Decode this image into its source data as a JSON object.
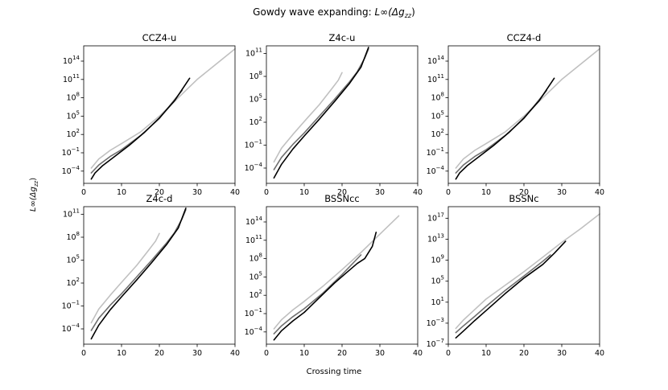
{
  "figure": {
    "title_prefix": "Gowdy wave expanding: ",
    "title_math": "L∞(Δg",
    "title_sub": "zz",
    "title_close": ")",
    "xlabel": "Crossing time",
    "ylabel_main": "L∞(Δg",
    "ylabel_sub": "zz",
    "ylabel_close": ")"
  },
  "colors": {
    "dark": "#000000",
    "mid": "#707070",
    "light": "#c0c0c0"
  },
  "chart_data": [
    {
      "type": "line",
      "title": "CCZ4-u",
      "xlim": [
        0,
        40
      ],
      "ylim_log10": [
        -6,
        16.5
      ],
      "xticks": [
        0,
        10,
        20,
        30,
        40
      ],
      "yticks": [
        {
          "exp": "-4",
          "v": -4
        },
        {
          "exp": "-1",
          "v": -1
        },
        {
          "exp": "2",
          "v": 2
        },
        {
          "exp": "5",
          "v": 5
        },
        {
          "exp": "8",
          "v": 8
        },
        {
          "exp": "11",
          "v": 11
        },
        {
          "exp": "14",
          "v": 14
        }
      ],
      "series": [
        {
          "name": "light",
          "color": "#c0c0c0",
          "x": [
            2,
            4,
            7,
            10,
            15,
            20,
            25,
            30,
            35,
            40
          ],
          "log10y": [
            -3.5,
            -2,
            -0.6,
            0.5,
            2.4,
            5,
            8,
            11,
            13.5,
            16
          ]
        },
        {
          "name": "mid",
          "color": "#707070",
          "x": [
            2,
            4,
            7,
            10,
            15,
            20,
            26
          ],
          "log10y": [
            -4.3,
            -3,
            -1.6,
            -0.5,
            1.8,
            4.6,
            9.2
          ]
        },
        {
          "name": "dark",
          "color": "#000000",
          "x": [
            2,
            3,
            5,
            8,
            12,
            16,
            20,
            24,
            28
          ],
          "log10y": [
            -5.3,
            -4.3,
            -3.1,
            -1.7,
            0.2,
            2.3,
            4.7,
            7.5,
            11.2
          ]
        }
      ]
    },
    {
      "type": "line",
      "title": "Z4c-u",
      "xlim": [
        0,
        40
      ],
      "ylim_log10": [
        -6,
        12
      ],
      "xticks": [
        0,
        10,
        20,
        30,
        40
      ],
      "yticks": [
        {
          "exp": "-4",
          "v": -4
        },
        {
          "exp": "-1",
          "v": -1
        },
        {
          "exp": "2",
          "v": 2
        },
        {
          "exp": "5",
          "v": 5
        },
        {
          "exp": "8",
          "v": 8
        },
        {
          "exp": "11",
          "v": 11
        }
      ],
      "series": [
        {
          "name": "light",
          "color": "#c0c0c0",
          "x": [
            2,
            4,
            7,
            10,
            14,
            17,
            19,
            20
          ],
          "log10y": [
            -3.2,
            -1.4,
            0.4,
            2.1,
            4.3,
            6.2,
            7.5,
            8.5
          ]
        },
        {
          "name": "mid",
          "color": "#707070",
          "x": [
            2,
            4,
            7,
            10,
            14,
            18,
            22,
            24,
            26,
            27
          ],
          "log10y": [
            -4.2,
            -2.6,
            -0.9,
            0.6,
            2.8,
            5,
            7.3,
            8.6,
            10.4,
            11.6
          ]
        },
        {
          "name": "dark",
          "color": "#000000",
          "x": [
            2,
            4,
            7,
            10,
            14,
            18,
            22,
            25,
            27
          ],
          "log10y": [
            -5.3,
            -3.5,
            -1.5,
            0.2,
            2.4,
            4.7,
            7.1,
            9.2,
            11.8
          ]
        }
      ]
    },
    {
      "type": "line",
      "title": "CCZ4-d",
      "xlim": [
        0,
        40
      ],
      "ylim_log10": [
        -6,
        16.5
      ],
      "xticks": [
        0,
        10,
        20,
        30,
        40
      ],
      "yticks": [
        {
          "exp": "-4",
          "v": -4
        },
        {
          "exp": "-1",
          "v": -1
        },
        {
          "exp": "2",
          "v": 2
        },
        {
          "exp": "5",
          "v": 5
        },
        {
          "exp": "8",
          "v": 8
        },
        {
          "exp": "11",
          "v": 11
        },
        {
          "exp": "14",
          "v": 14
        }
      ],
      "series": [
        {
          "name": "light",
          "color": "#c0c0c0",
          "x": [
            2,
            4,
            7,
            10,
            15,
            20,
            25,
            30,
            35,
            40
          ],
          "log10y": [
            -3.5,
            -2,
            -0.6,
            0.5,
            2.4,
            5,
            8,
            11,
            13.5,
            16
          ]
        },
        {
          "name": "mid",
          "color": "#707070",
          "x": [
            2,
            4,
            7,
            10,
            15,
            20,
            26
          ],
          "log10y": [
            -4.3,
            -3,
            -1.6,
            -0.5,
            1.8,
            4.6,
            9.2
          ]
        },
        {
          "name": "dark",
          "color": "#000000",
          "x": [
            2,
            3,
            5,
            8,
            12,
            16,
            20,
            24,
            28
          ],
          "log10y": [
            -5.3,
            -4.3,
            -3.1,
            -1.7,
            0.2,
            2.3,
            4.7,
            7.5,
            11.2
          ]
        }
      ]
    },
    {
      "type": "line",
      "title": "Z4c-d",
      "xlim": [
        0,
        40
      ],
      "ylim_log10": [
        -6,
        12
      ],
      "xticks": [
        0,
        10,
        20,
        30,
        40
      ],
      "yticks": [
        {
          "exp": "-4",
          "v": -4
        },
        {
          "exp": "-1",
          "v": -1
        },
        {
          "exp": "2",
          "v": 2
        },
        {
          "exp": "5",
          "v": 5
        },
        {
          "exp": "8",
          "v": 8
        },
        {
          "exp": "11",
          "v": 11
        }
      ],
      "series": [
        {
          "name": "light",
          "color": "#c0c0c0",
          "x": [
            2,
            4,
            7,
            10,
            14,
            17,
            19,
            20
          ],
          "log10y": [
            -3.2,
            -1.4,
            0.4,
            2.1,
            4.3,
            6.2,
            7.5,
            8.5
          ]
        },
        {
          "name": "mid",
          "color": "#707070",
          "x": [
            2,
            4,
            7,
            10,
            14,
            18,
            22,
            24,
            26,
            27
          ],
          "log10y": [
            -4.2,
            -2.6,
            -0.9,
            0.6,
            2.8,
            5,
            7.3,
            8.6,
            10.4,
            11.6
          ]
        },
        {
          "name": "dark",
          "color": "#000000",
          "x": [
            2,
            4,
            7,
            10,
            14,
            18,
            22,
            25,
            27
          ],
          "log10y": [
            -5.3,
            -3.5,
            -1.5,
            0.2,
            2.4,
            4.7,
            7.1,
            9.2,
            11.8
          ]
        }
      ]
    },
    {
      "type": "line",
      "title": "BSSNcc",
      "xlim": [
        0,
        40
      ],
      "ylim_log10": [
        -6,
        16.5
      ],
      "xticks": [
        0,
        10,
        20,
        30,
        40
      ],
      "yticks": [
        {
          "exp": "-4",
          "v": -4
        },
        {
          "exp": "-1",
          "v": -1
        },
        {
          "exp": "2",
          "v": 2
        },
        {
          "exp": "5",
          "v": 5
        },
        {
          "exp": "8",
          "v": 8
        },
        {
          "exp": "11",
          "v": 11
        },
        {
          "exp": "14",
          "v": 14
        }
      ],
      "series": [
        {
          "name": "light",
          "color": "#c0c0c0",
          "x": [
            2,
            4,
            7,
            10,
            15,
            20,
            25,
            30,
            35
          ],
          "log10y": [
            -3.5,
            -2,
            -0.4,
            1,
            3.5,
            6.2,
            9,
            12,
            15
          ]
        },
        {
          "name": "mid",
          "color": "#707070",
          "x": [
            2,
            4,
            7,
            10,
            15,
            20,
            25
          ],
          "log10y": [
            -4.3,
            -3,
            -1.5,
            -0.2,
            2.4,
            5.4,
            8.6
          ]
        },
        {
          "name": "dark",
          "color": "#000000",
          "x": [
            2,
            4,
            7,
            10,
            14,
            18,
            21,
            24,
            26,
            28,
            29
          ],
          "log10y": [
            -5.3,
            -3.8,
            -2.2,
            -0.8,
            1.6,
            4,
            5.6,
            7.2,
            8,
            10,
            12.3
          ]
        }
      ]
    },
    {
      "type": "line",
      "title": "BSSNc",
      "xlim": [
        0,
        40
      ],
      "ylim_log10": [
        -7,
        19.2
      ],
      "xticks": [
        0,
        10,
        20,
        30,
        40
      ],
      "yticks": [
        {
          "exp": "-7",
          "v": -7
        },
        {
          "exp": "-3",
          "v": -3
        },
        {
          "exp": "1",
          "v": 1
        },
        {
          "exp": "5",
          "v": 5
        },
        {
          "exp": "9",
          "v": 9
        },
        {
          "exp": "13",
          "v": 13
        },
        {
          "exp": "17",
          "v": 17
        }
      ],
      "series": [
        {
          "name": "light",
          "color": "#c0c0c0",
          "x": [
            2,
            4,
            7,
            10,
            15,
            20,
            25,
            30,
            35,
            40
          ],
          "log10y": [
            -4,
            -2.4,
            -0.4,
            1.6,
            4.2,
            6.8,
            9.6,
            12.4,
            15,
            17.8
          ]
        },
        {
          "name": "mid",
          "color": "#707070",
          "x": [
            2,
            4,
            7,
            10,
            15,
            20,
            25,
            27
          ],
          "log10y": [
            -4.8,
            -3.5,
            -1.7,
            0.2,
            3.2,
            6,
            8.8,
            10
          ]
        },
        {
          "name": "dark",
          "color": "#000000",
          "x": [
            2,
            4,
            7,
            10,
            15,
            20,
            25,
            28,
            31
          ],
          "log10y": [
            -5.8,
            -4.5,
            -2.5,
            -0.6,
            2.6,
            5.6,
            8.2,
            10.3,
            12.6
          ]
        }
      ]
    }
  ]
}
